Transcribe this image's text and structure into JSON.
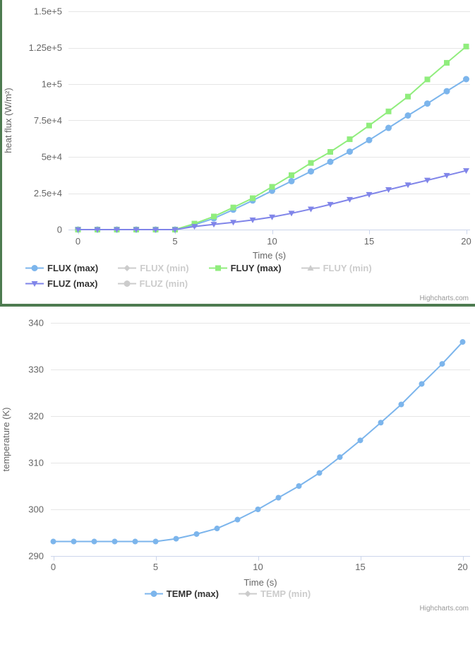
{
  "colors": {
    "accent_blue": "#7cb5ec",
    "accent_green": "#90ed7d",
    "accent_purple": "#8085e9",
    "disabled": "#cccccc",
    "legend_text": "#333333",
    "axis_text": "#666666",
    "grid_line": "#e6e6e6",
    "axis_line": "#ccd6eb",
    "panel_border_green": "#4d7b50",
    "credits_text": "#999999"
  },
  "chart_data": [
    {
      "type": "line",
      "title": "",
      "xlabel": "Time (s)",
      "ylabel": "heat flux (W/m²)",
      "xlim": [
        0,
        20
      ],
      "ylim": [
        0,
        150000
      ],
      "grid": "horizontal",
      "legend_position": "bottom",
      "x_ticks": [
        0,
        5,
        10,
        15,
        20
      ],
      "y_ticks": [
        {
          "value": 0,
          "label": "0"
        },
        {
          "value": 25000,
          "label": "2.5e+4"
        },
        {
          "value": 50000,
          "label": "5e+4"
        },
        {
          "value": 75000,
          "label": "7.5e+4"
        },
        {
          "value": 100000,
          "label": "1e+5"
        },
        {
          "value": 125000,
          "label": "1.25e+5"
        },
        {
          "value": 150000,
          "label": "1.5e+5"
        }
      ],
      "x": [
        0,
        1,
        2,
        3,
        4,
        5,
        6,
        7,
        8,
        9,
        10,
        11,
        12,
        13,
        14,
        15,
        16,
        17,
        18,
        19,
        20
      ],
      "series": [
        {
          "name": "FLUX (max)",
          "marker": "circle",
          "color_key": "accent_blue",
          "visible": true,
          "values": [
            0,
            0,
            0,
            0,
            0,
            0,
            3300,
            7700,
            13700,
            20000,
            26700,
            33300,
            40000,
            46600,
            53600,
            61500,
            69900,
            78400,
            86600,
            95100,
            103400
          ]
        },
        {
          "name": "FLUX (min)",
          "marker": "diamond",
          "color_key": "disabled",
          "visible": false,
          "values": []
        },
        {
          "name": "FLUY (max)",
          "marker": "square",
          "color_key": "accent_green",
          "visible": true,
          "values": [
            0,
            0,
            0,
            0,
            0,
            0,
            4100,
            9000,
            15200,
            21600,
            29400,
            37400,
            45800,
            53400,
            62100,
            71500,
            81200,
            91400,
            103200,
            114600,
            125800
          ]
        },
        {
          "name": "FLUY (min)",
          "marker": "triangle",
          "color_key": "disabled",
          "visible": false,
          "values": []
        },
        {
          "name": "FLUZ (max)",
          "marker": "triangle-down",
          "color_key": "accent_purple",
          "visible": true,
          "values": [
            0,
            0,
            0,
            0,
            0,
            0,
            2100,
            3600,
            5000,
            6600,
            8600,
            11200,
            14100,
            17300,
            20700,
            24100,
            27400,
            30700,
            33900,
            37200,
            40500
          ]
        },
        {
          "name": "FLUZ (min)",
          "marker": "circle",
          "color_key": "disabled",
          "visible": false,
          "values": []
        }
      ],
      "credits": "Highcharts.com"
    },
    {
      "type": "line",
      "title": "",
      "xlabel": "Time (s)",
      "ylabel": "temperature (K)",
      "xlim": [
        0,
        20
      ],
      "ylim": [
        290,
        340
      ],
      "grid": "horizontal",
      "legend_position": "bottom",
      "x_ticks": [
        0,
        5,
        10,
        15,
        20
      ],
      "y_ticks": [
        {
          "value": 290,
          "label": "290"
        },
        {
          "value": 300,
          "label": "300"
        },
        {
          "value": 310,
          "label": "310"
        },
        {
          "value": 320,
          "label": "320"
        },
        {
          "value": 330,
          "label": "330"
        },
        {
          "value": 340,
          "label": "340"
        }
      ],
      "x": [
        0,
        1,
        2,
        3,
        4,
        5,
        6,
        7,
        8,
        9,
        10,
        11,
        12,
        13,
        14,
        15,
        16,
        17,
        18,
        19,
        20
      ],
      "series": [
        {
          "name": "TEMP (max)",
          "marker": "circle",
          "color_key": "accent_blue",
          "visible": true,
          "values": [
            293.1,
            293.1,
            293.1,
            293.1,
            293.1,
            293.1,
            293.7,
            294.7,
            295.9,
            297.8,
            300.0,
            302.5,
            305.0,
            307.8,
            311.2,
            314.8,
            318.6,
            322.5,
            326.9,
            331.2,
            335.9
          ]
        },
        {
          "name": "TEMP (min)",
          "marker": "diamond",
          "color_key": "disabled",
          "visible": false,
          "values": []
        }
      ],
      "credits": "Highcharts.com"
    }
  ]
}
